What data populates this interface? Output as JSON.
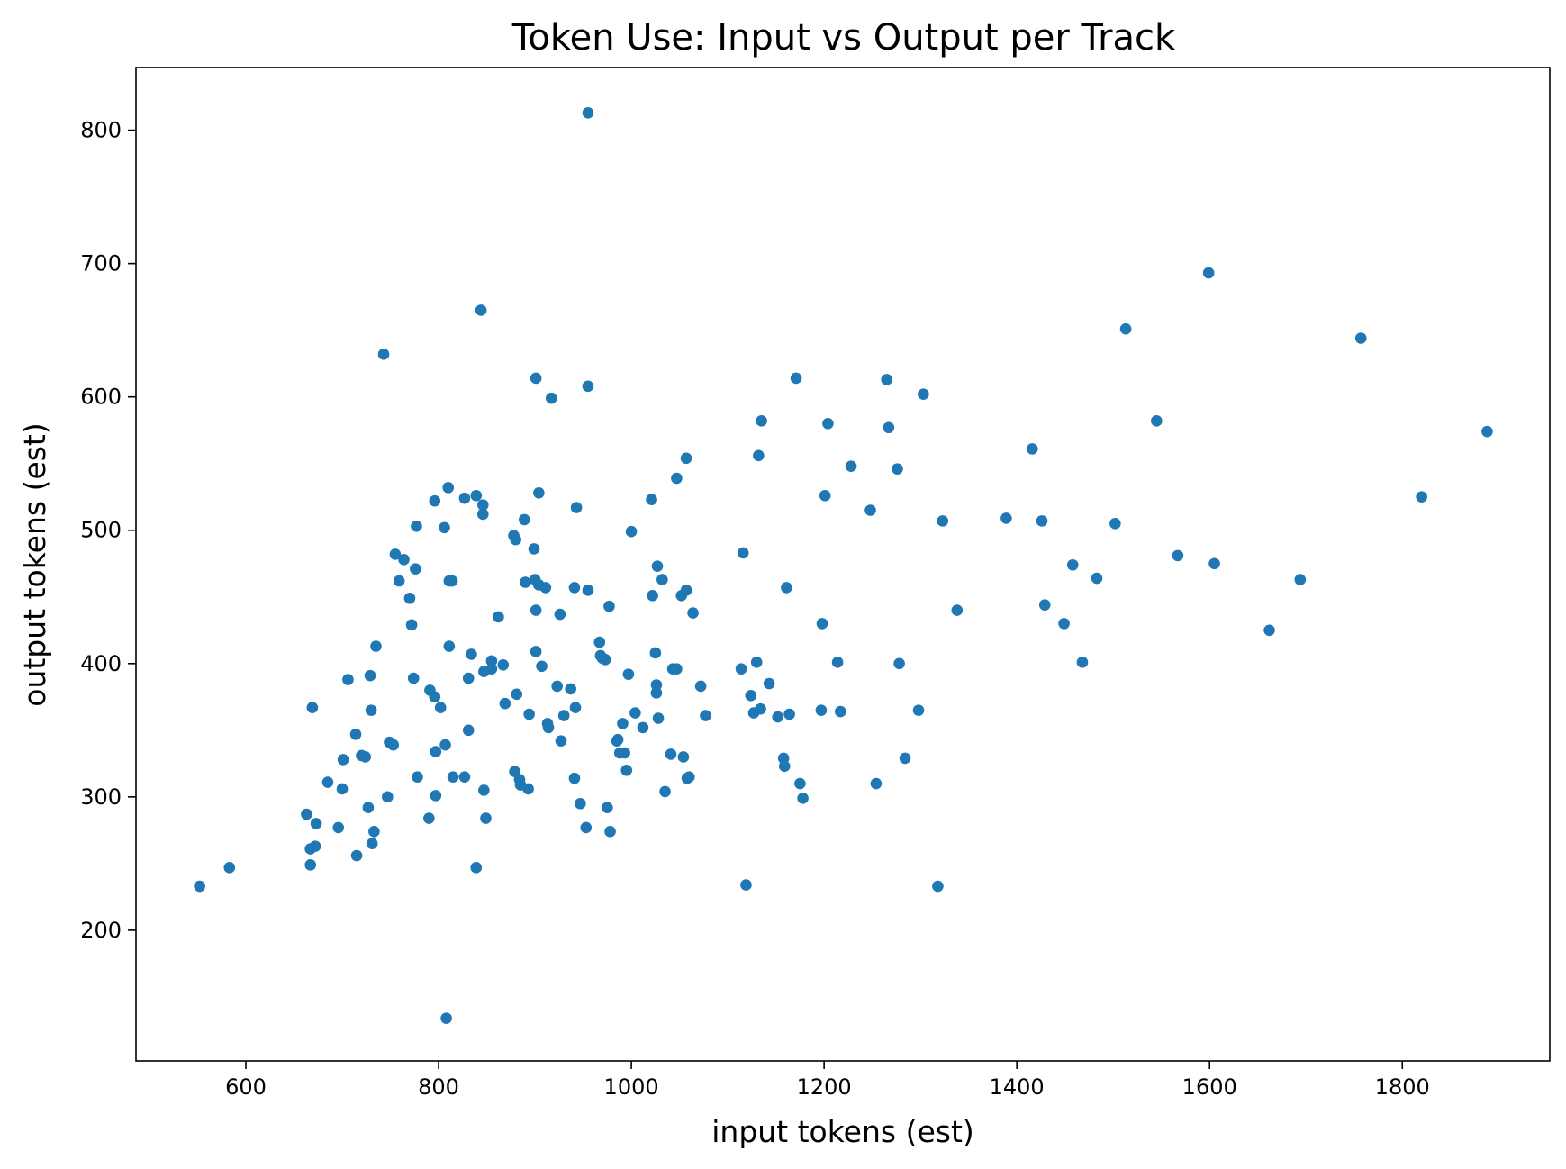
{
  "chart_data": {
    "type": "scatter",
    "title": "Token Use: Input vs Output per Track",
    "xlabel": "input tokens (est)",
    "ylabel": "output tokens (est)",
    "xlim": [
      486,
      1953
    ],
    "ylim": [
      102,
      847
    ],
    "xticks": [
      600,
      800,
      1000,
      1200,
      1400,
      1600,
      1800
    ],
    "yticks": [
      200,
      300,
      400,
      500,
      600,
      700,
      800
    ],
    "grid": false,
    "legend": "none",
    "point_color": "#1f77b4",
    "points": [
      [
        552,
        233
      ],
      [
        583,
        247
      ],
      [
        663,
        287
      ],
      [
        667,
        261
      ],
      [
        667,
        249
      ],
      [
        669,
        367
      ],
      [
        672,
        263
      ],
      [
        673,
        280
      ],
      [
        685,
        311
      ],
      [
        696,
        277
      ],
      [
        700,
        306
      ],
      [
        701,
        328
      ],
      [
        706,
        388
      ],
      [
        714,
        347
      ],
      [
        715,
        256
      ],
      [
        720,
        331
      ],
      [
        724,
        330
      ],
      [
        727,
        292
      ],
      [
        729,
        391
      ],
      [
        730,
        365
      ],
      [
        731,
        265
      ],
      [
        733,
        274
      ],
      [
        735,
        413
      ],
      [
        743,
        632
      ],
      [
        747,
        300
      ],
      [
        749,
        341
      ],
      [
        753,
        339
      ],
      [
        755,
        482
      ],
      [
        759,
        462
      ],
      [
        764,
        478
      ],
      [
        770,
        449
      ],
      [
        772,
        429
      ],
      [
        774,
        389
      ],
      [
        776,
        471
      ],
      [
        777,
        503
      ],
      [
        778,
        315
      ],
      [
        790,
        284
      ],
      [
        791,
        380
      ],
      [
        796,
        522
      ],
      [
        796,
        375
      ],
      [
        797,
        301
      ],
      [
        797,
        334
      ],
      [
        802,
        367
      ],
      [
        806,
        502
      ],
      [
        807,
        339
      ],
      [
        808,
        134
      ],
      [
        810,
        532
      ],
      [
        811,
        413
      ],
      [
        811,
        462
      ],
      [
        814,
        462
      ],
      [
        815,
        315
      ],
      [
        827,
        524
      ],
      [
        827,
        315
      ],
      [
        831,
        350
      ],
      [
        831,
        389
      ],
      [
        834,
        407
      ],
      [
        839,
        526
      ],
      [
        839,
        247
      ],
      [
        844,
        665
      ],
      [
        846,
        512
      ],
      [
        846,
        519
      ],
      [
        847,
        305
      ],
      [
        847,
        394
      ],
      [
        849,
        284
      ],
      [
        855,
        396
      ],
      [
        855,
        402
      ],
      [
        862,
        435
      ],
      [
        867,
        399
      ],
      [
        869,
        370
      ],
      [
        878,
        496
      ],
      [
        879,
        319
      ],
      [
        880,
        493
      ],
      [
        881,
        377
      ],
      [
        884,
        313
      ],
      [
        885,
        309
      ],
      [
        889,
        508
      ],
      [
        890,
        461
      ],
      [
        893,
        306
      ],
      [
        894,
        362
      ],
      [
        899,
        486
      ],
      [
        900,
        463
      ],
      [
        901,
        440
      ],
      [
        901,
        409
      ],
      [
        901,
        614
      ],
      [
        904,
        528
      ],
      [
        904,
        459
      ],
      [
        907,
        398
      ],
      [
        911,
        457
      ],
      [
        913,
        355
      ],
      [
        914,
        352
      ],
      [
        917,
        599
      ],
      [
        923,
        383
      ],
      [
        926,
        437
      ],
      [
        927,
        342
      ],
      [
        930,
        361
      ],
      [
        937,
        381
      ],
      [
        941,
        314
      ],
      [
        941,
        457
      ],
      [
        942,
        367
      ],
      [
        943,
        517
      ],
      [
        947,
        295
      ],
      [
        953,
        277
      ],
      [
        955,
        608
      ],
      [
        955,
        455
      ],
      [
        955,
        813
      ],
      [
        967,
        416
      ],
      [
        968,
        406
      ],
      [
        970,
        404
      ],
      [
        973,
        403
      ],
      [
        975,
        292
      ],
      [
        977,
        443
      ],
      [
        978,
        274
      ],
      [
        985,
        342
      ],
      [
        986,
        343
      ],
      [
        988,
        333
      ],
      [
        991,
        355
      ],
      [
        993,
        333
      ],
      [
        995,
        320
      ],
      [
        997,
        392
      ],
      [
        1000,
        499
      ],
      [
        1004,
        363
      ],
      [
        1012,
        352
      ],
      [
        1021,
        523
      ],
      [
        1022,
        451
      ],
      [
        1025,
        408
      ],
      [
        1026,
        384
      ],
      [
        1026,
        378
      ],
      [
        1027,
        473
      ],
      [
        1028,
        359
      ],
      [
        1032,
        463
      ],
      [
        1035,
        304
      ],
      [
        1041,
        332
      ],
      [
        1043,
        396
      ],
      [
        1047,
        539
      ],
      [
        1047,
        396
      ],
      [
        1052,
        451
      ],
      [
        1054,
        330
      ],
      [
        1057,
        455
      ],
      [
        1057,
        554
      ],
      [
        1058,
        314
      ],
      [
        1060,
        315
      ],
      [
        1064,
        438
      ],
      [
        1072,
        383
      ],
      [
        1077,
        361
      ],
      [
        1114,
        396
      ],
      [
        1116,
        483
      ],
      [
        1119,
        234
      ],
      [
        1124,
        376
      ],
      [
        1127,
        363
      ],
      [
        1130,
        401
      ],
      [
        1132,
        556
      ],
      [
        1134,
        366
      ],
      [
        1135,
        582
      ],
      [
        1143,
        385
      ],
      [
        1152,
        360
      ],
      [
        1158,
        329
      ],
      [
        1159,
        323
      ],
      [
        1161,
        457
      ],
      [
        1164,
        362
      ],
      [
        1171,
        614
      ],
      [
        1175,
        310
      ],
      [
        1178,
        299
      ],
      [
        1197,
        365
      ],
      [
        1198,
        430
      ],
      [
        1201,
        526
      ],
      [
        1204,
        580
      ],
      [
        1214,
        401
      ],
      [
        1217,
        364
      ],
      [
        1228,
        548
      ],
      [
        1248,
        515
      ],
      [
        1254,
        310
      ],
      [
        1265,
        613
      ],
      [
        1267,
        577
      ],
      [
        1276,
        546
      ],
      [
        1278,
        400
      ],
      [
        1284,
        329
      ],
      [
        1298,
        365
      ],
      [
        1303,
        602
      ],
      [
        1318,
        233
      ],
      [
        1323,
        507
      ],
      [
        1338,
        440
      ],
      [
        1389,
        509
      ],
      [
        1416,
        561
      ],
      [
        1426,
        507
      ],
      [
        1429,
        444
      ],
      [
        1449,
        430
      ],
      [
        1458,
        474
      ],
      [
        1468,
        401
      ],
      [
        1483,
        464
      ],
      [
        1502,
        505
      ],
      [
        1513,
        651
      ],
      [
        1545,
        582
      ],
      [
        1567,
        481
      ],
      [
        1599,
        693
      ],
      [
        1605,
        475
      ],
      [
        1662,
        425
      ],
      [
        1694,
        463
      ],
      [
        1757,
        644
      ],
      [
        1820,
        525
      ],
      [
        1888,
        574
      ]
    ]
  }
}
